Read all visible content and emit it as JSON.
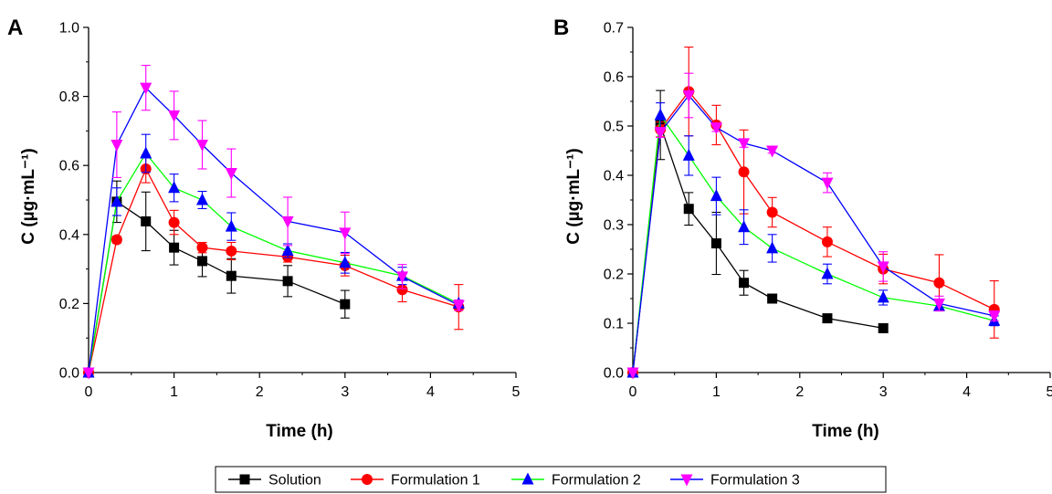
{
  "chart_data": [
    {
      "type": "line",
      "panel_label": "A",
      "xlabel": "Time (h)",
      "ylabel": "C (µg·mL⁻¹)",
      "xlim": [
        0,
        5
      ],
      "ylim": [
        0,
        1.0
      ],
      "xticks": [
        "0",
        "1",
        "2",
        "3",
        "4",
        "5"
      ],
      "yticks": [
        "0.0",
        "0.2",
        "0.4",
        "0.6",
        "0.8",
        "1.0"
      ],
      "x": [
        0,
        0.33,
        0.67,
        1,
        1.33,
        1.67,
        2.33,
        3,
        3.67,
        4.33
      ],
      "series": [
        {
          "name": "Solution",
          "x": [
            0,
            0.33,
            0.67,
            1,
            1.33,
            1.67,
            2.33,
            3
          ],
          "values": [
            0,
            0.495,
            0.438,
            0.362,
            0.323,
            0.28,
            0.265,
            0.198
          ],
          "errors": [
            0,
            0.06,
            0.085,
            0.05,
            0.045,
            0.05,
            0.045,
            0.04
          ]
        },
        {
          "name": "Formulation 1",
          "x": [
            0,
            0.33,
            0.67,
            1,
            1.33,
            1.67,
            2.33,
            3,
            3.67,
            4.33
          ],
          "values": [
            0,
            0.385,
            0.59,
            0.435,
            0.362,
            0.352,
            0.335,
            0.31,
            0.24,
            0.19
          ],
          "errors": [
            0,
            0.01,
            0.04,
            0.035,
            0.015,
            0.025,
            0.015,
            0.03,
            0.035,
            0.065
          ]
        },
        {
          "name": "Formulation 2",
          "x": [
            0,
            0.33,
            0.67,
            1,
            1.33,
            1.67,
            2.33,
            3,
            3.67,
            4.33
          ],
          "values": [
            0,
            0.495,
            0.635,
            0.535,
            0.5,
            0.423,
            0.353,
            0.318,
            0.28,
            0.2
          ],
          "errors": [
            0,
            0.04,
            0.055,
            0.04,
            0.025,
            0.04,
            0.02,
            0.03,
            0.025,
            0.01
          ]
        },
        {
          "name": "Formulation 3",
          "x": [
            0,
            0.33,
            0.67,
            1,
            1.33,
            1.67,
            2.33,
            3,
            3.67,
            4.33
          ],
          "values": [
            0,
            0.66,
            0.825,
            0.745,
            0.66,
            0.578,
            0.438,
            0.405,
            0.278,
            0.195
          ],
          "errors": [
            0,
            0.095,
            0.065,
            0.07,
            0.07,
            0.07,
            0.07,
            0.06,
            0.035,
            0.015
          ]
        }
      ]
    },
    {
      "type": "line",
      "panel_label": "B",
      "xlabel": "Time (h)",
      "ylabel": "C (µg·mL⁻¹)",
      "xlim": [
        0,
        5
      ],
      "ylim": [
        0,
        0.7
      ],
      "xticks": [
        "0",
        "1",
        "2",
        "3",
        "4",
        "5"
      ],
      "yticks": [
        "0.0",
        "0.1",
        "0.2",
        "0.3",
        "0.4",
        "0.5",
        "0.6",
        "0.7"
      ],
      "x": [
        0,
        0.33,
        0.67,
        1,
        1.33,
        1.67,
        2.33,
        3,
        3.67,
        4.33
      ],
      "series": [
        {
          "name": "Solution",
          "x": [
            0,
            0.33,
            0.67,
            1,
            1.33,
            1.67,
            2.33,
            3
          ],
          "values": [
            0,
            0.502,
            0.332,
            0.262,
            0.182,
            0.15,
            0.11,
            0.09
          ],
          "errors": [
            0,
            0.07,
            0.033,
            0.063,
            0.025,
            0.006,
            0.005,
            0.005
          ]
        },
        {
          "name": "Formulation 1",
          "x": [
            0,
            0.33,
            0.67,
            1,
            1.33,
            1.67,
            2.33,
            3,
            3.67,
            4.33
          ],
          "values": [
            0,
            0.493,
            0.57,
            0.502,
            0.407,
            0.325,
            0.265,
            0.21,
            0.182,
            0.128
          ],
          "errors": [
            0,
            0.015,
            0.09,
            0.04,
            0.085,
            0.03,
            0.03,
            0.03,
            0.057,
            0.058
          ]
        },
        {
          "name": "Formulation 2",
          "x": [
            0,
            0.33,
            0.67,
            1,
            1.33,
            1.67,
            2.33,
            3,
            3.67,
            4.33
          ],
          "values": [
            0,
            0.522,
            0.44,
            0.358,
            0.295,
            0.252,
            0.2,
            0.152,
            0.135,
            0.105
          ],
          "errors": [
            0,
            0.025,
            0.04,
            0.038,
            0.035,
            0.028,
            0.02,
            0.015,
            0.01,
            0.01
          ]
        },
        {
          "name": "Formulation 3",
          "x": [
            0,
            0.33,
            0.67,
            1,
            1.33,
            1.67,
            2.33,
            3,
            3.67,
            4.33
          ],
          "values": [
            0,
            0.487,
            0.562,
            0.497,
            0.465,
            0.45,
            0.385,
            0.215,
            0.14,
            0.115
          ],
          "errors": [
            0,
            0.01,
            0.045,
            0.008,
            0.008,
            0.005,
            0.02,
            0.03,
            0.015,
            0.01
          ]
        }
      ]
    }
  ],
  "legend": {
    "position": "bottom-center",
    "items": [
      {
        "label": "Solution",
        "color": "#000000",
        "marker": "square"
      },
      {
        "label": "Formulation 1",
        "color": "#ff0000",
        "marker": "circle"
      },
      {
        "label": "Formulation 2",
        "color": "#0000ff",
        "line_color": "#00ff00",
        "marker": "triangle-up"
      },
      {
        "label": "Formulation 3",
        "color": "#ff00ff",
        "line_color": "#0000ff",
        "marker": "triangle-down"
      }
    ]
  },
  "series_style": [
    {
      "line_color": "#000000",
      "marker_color": "#000000",
      "error_color": "#000000",
      "marker": "square"
    },
    {
      "line_color": "#ff0000",
      "marker_color": "#ff0000",
      "error_color": "#ff0000",
      "marker": "circle"
    },
    {
      "line_color": "#00ff00",
      "marker_color": "#0000ff",
      "error_color": "#0000ff",
      "marker": "triangle-up"
    },
    {
      "line_color": "#0000ff",
      "marker_color": "#ff00ff",
      "error_color": "#ff00ff",
      "marker": "triangle-down"
    }
  ]
}
